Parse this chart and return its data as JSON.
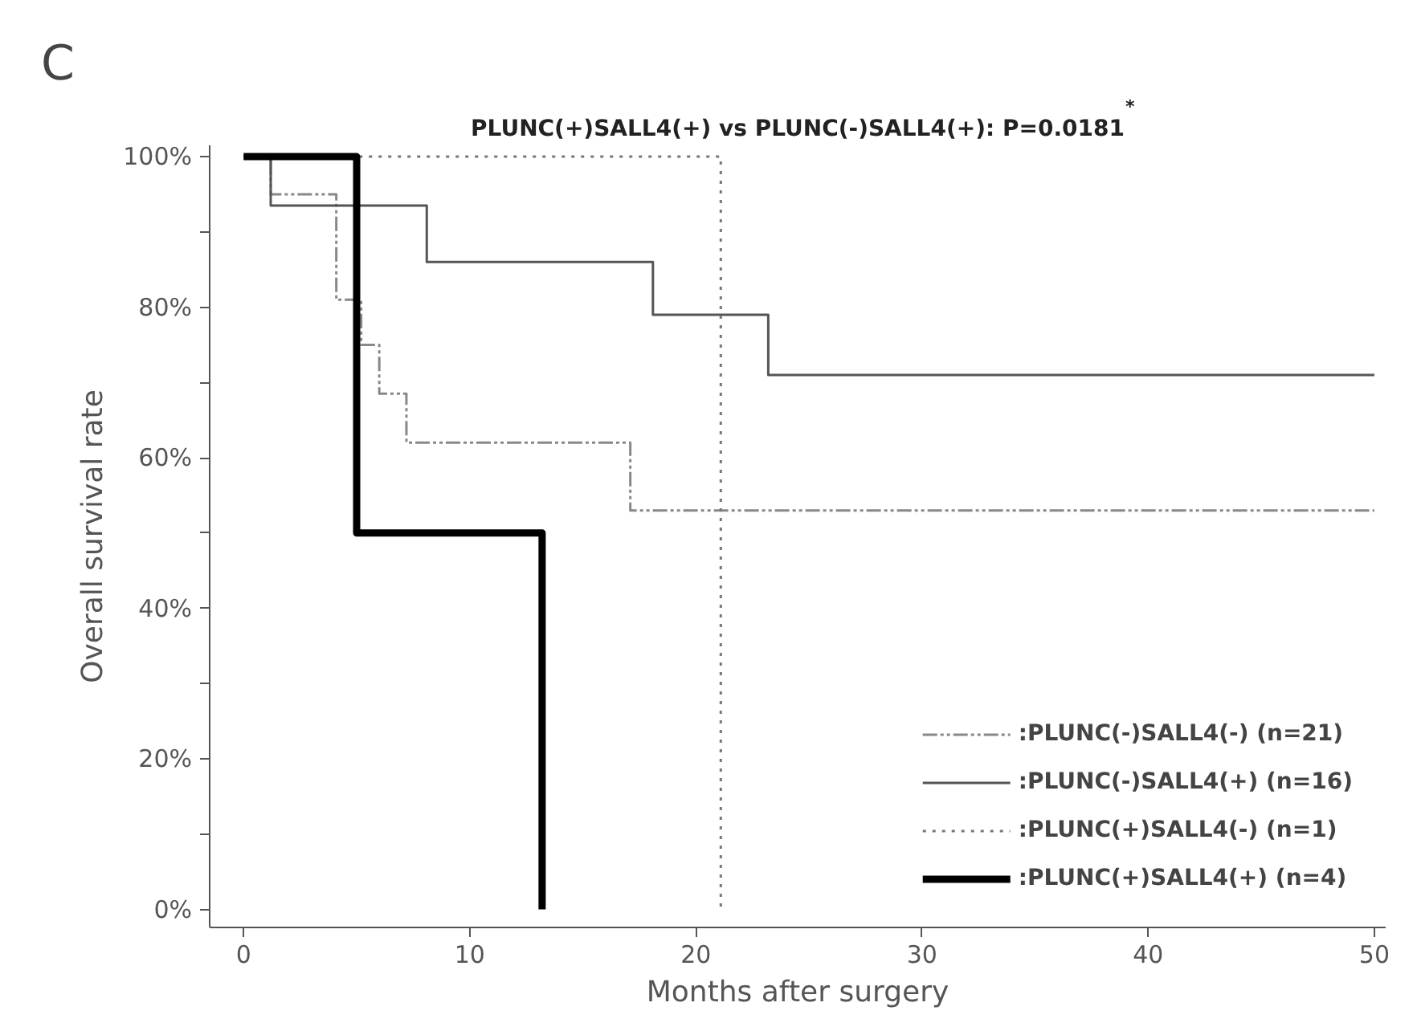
{
  "chart_data": {
    "type": "step",
    "title": "PLUNC(+)SALL4(+) vs PLUNC(-)SALL4(+): P=0.0181$^{*}$",
    "xlabel": "Months after surgery",
    "ylabel": "Overall survival rate",
    "annotations": [
      "C"
    ],
    "xlim": [
      -1.5,
      50.5
    ],
    "ylim": [
      -2.4,
      101.5
    ],
    "xticks": [
      0,
      10,
      20,
      30,
      40,
      50
    ],
    "yticks": [
      {
        "value": 0,
        "label": "0%"
      },
      {
        "value": 10,
        "label": null
      },
      {
        "value": 20,
        "label": "20%"
      },
      {
        "value": 30,
        "label": null
      },
      {
        "value": 40,
        "label": "40%"
      },
      {
        "value": 50,
        "label": null
      },
      {
        "value": 60,
        "label": "60%"
      },
      {
        "value": 70,
        "label": null
      },
      {
        "value": 80,
        "label": "80%"
      },
      {
        "value": 90,
        "label": null
      },
      {
        "value": 100,
        "label": "100%"
      }
    ],
    "grid": false,
    "legend": "bottom right",
    "series": [
      {
        "name": ":PLUNC(-)SALL4(-) (n=21)",
        "color": "#888888",
        "line_style": "dashdot",
        "x": [
          0,
          1.2,
          4.1,
          5.2,
          6.0,
          7.2,
          17.1,
          50
        ],
        "values": [
          100,
          95,
          81,
          75,
          68.5,
          62,
          53,
          53
        ]
      },
      {
        "name": ":PLUNC(-)SALL4(+) (n=16)",
        "color": "#555555",
        "line_style": "solid",
        "x": [
          0.3,
          1.2,
          8.1,
          18.1,
          23.2,
          50
        ],
        "values": [
          100,
          93.5,
          86,
          79,
          71,
          71
        ]
      },
      {
        "name": ":PLUNC(+)SALL4(-) (n=1)",
        "color": "#777777",
        "line_style": "dotted",
        "x": [
          0,
          21.1,
          21.1
        ],
        "values": [
          100,
          100,
          0
        ]
      },
      {
        "name": ":PLUNC(+)SALL4(+) (n=4)",
        "color": "#000000",
        "line_style": "solid",
        "x": [
          0,
          5.0,
          13.2,
          13.2
        ],
        "values": [
          100,
          50,
          50,
          0
        ]
      }
    ]
  }
}
